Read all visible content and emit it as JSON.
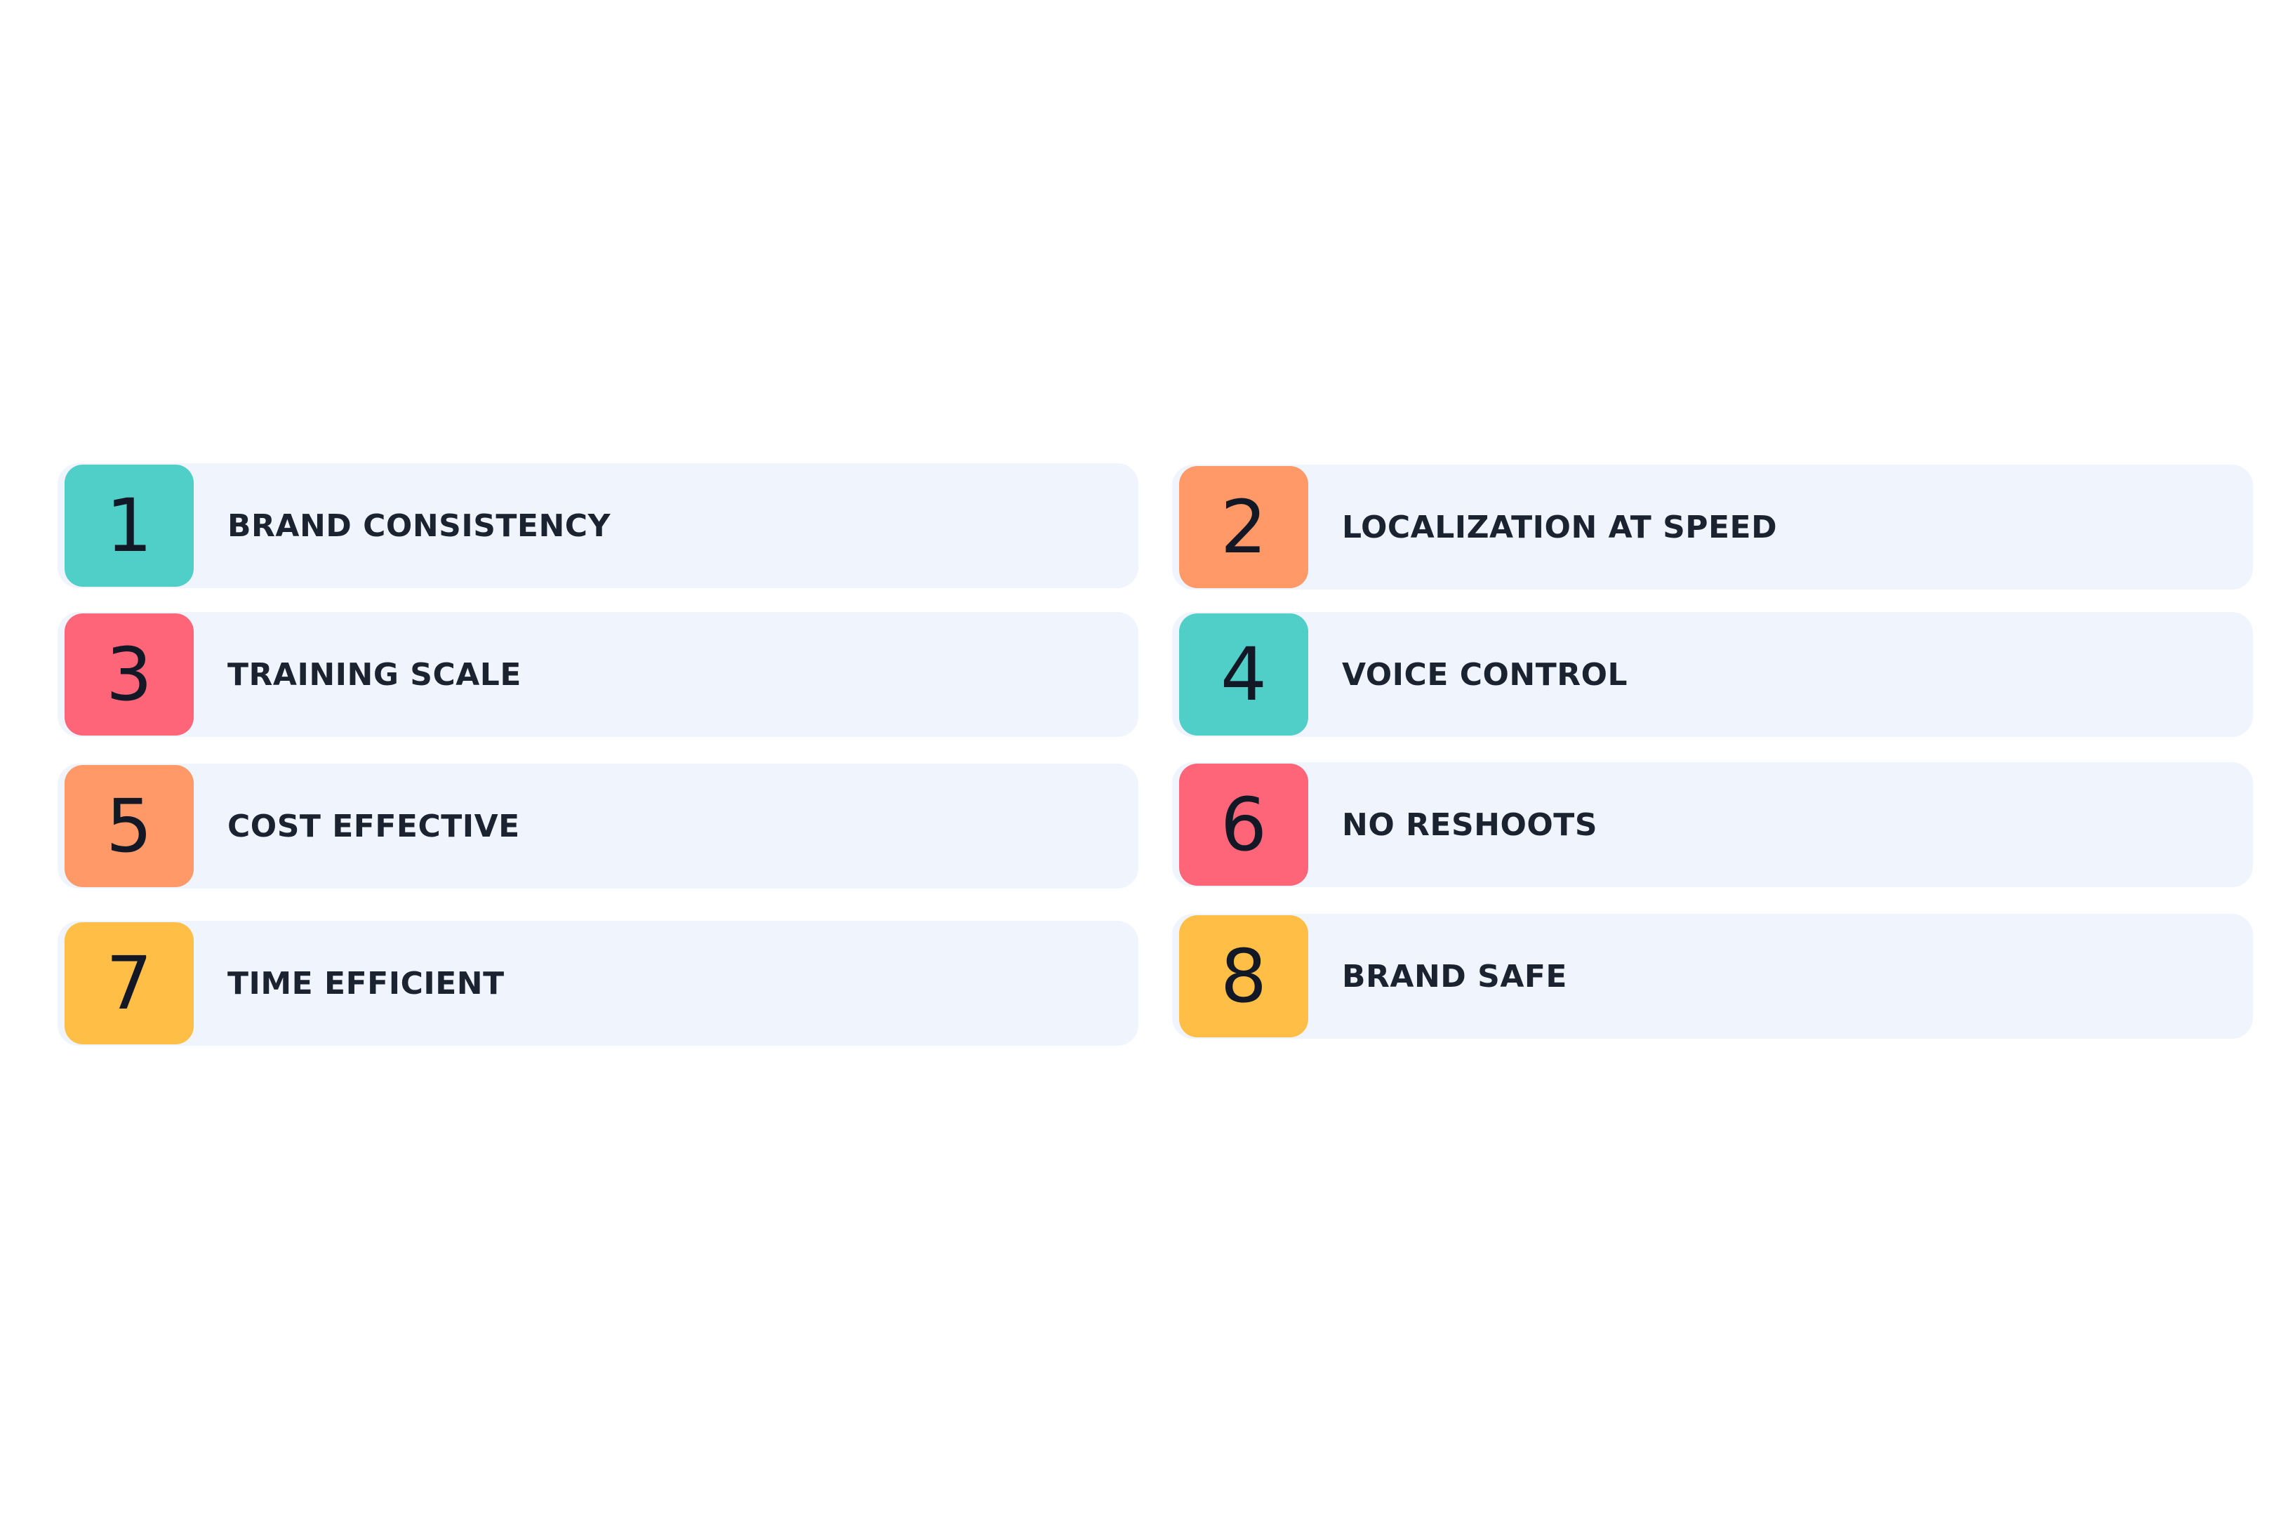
{
  "items": [
    {
      "number": "1",
      "label": "BRAND CONSISTENCY",
      "color": "#4fcfc8"
    },
    {
      "number": "2",
      "label": "LOCALIZATION AT SPEED",
      "color": "#ff9a68"
    },
    {
      "number": "3",
      "label": "TRAINING SCALE",
      "color": "#ff6578"
    },
    {
      "number": "4",
      "label": "VOICE CONTROL",
      "color": "#4fcfc8"
    },
    {
      "number": "5",
      "label": "COST EFFECTIVE",
      "color": "#ff9a68"
    },
    {
      "number": "6",
      "label": "NO RESHOOTS",
      "color": "#ff6578"
    },
    {
      "number": "7",
      "label": "TIME EFFICIENT",
      "color": "#ffbe45"
    },
    {
      "number": "8",
      "label": "BRAND SAFE",
      "color": "#ffbe45"
    }
  ]
}
